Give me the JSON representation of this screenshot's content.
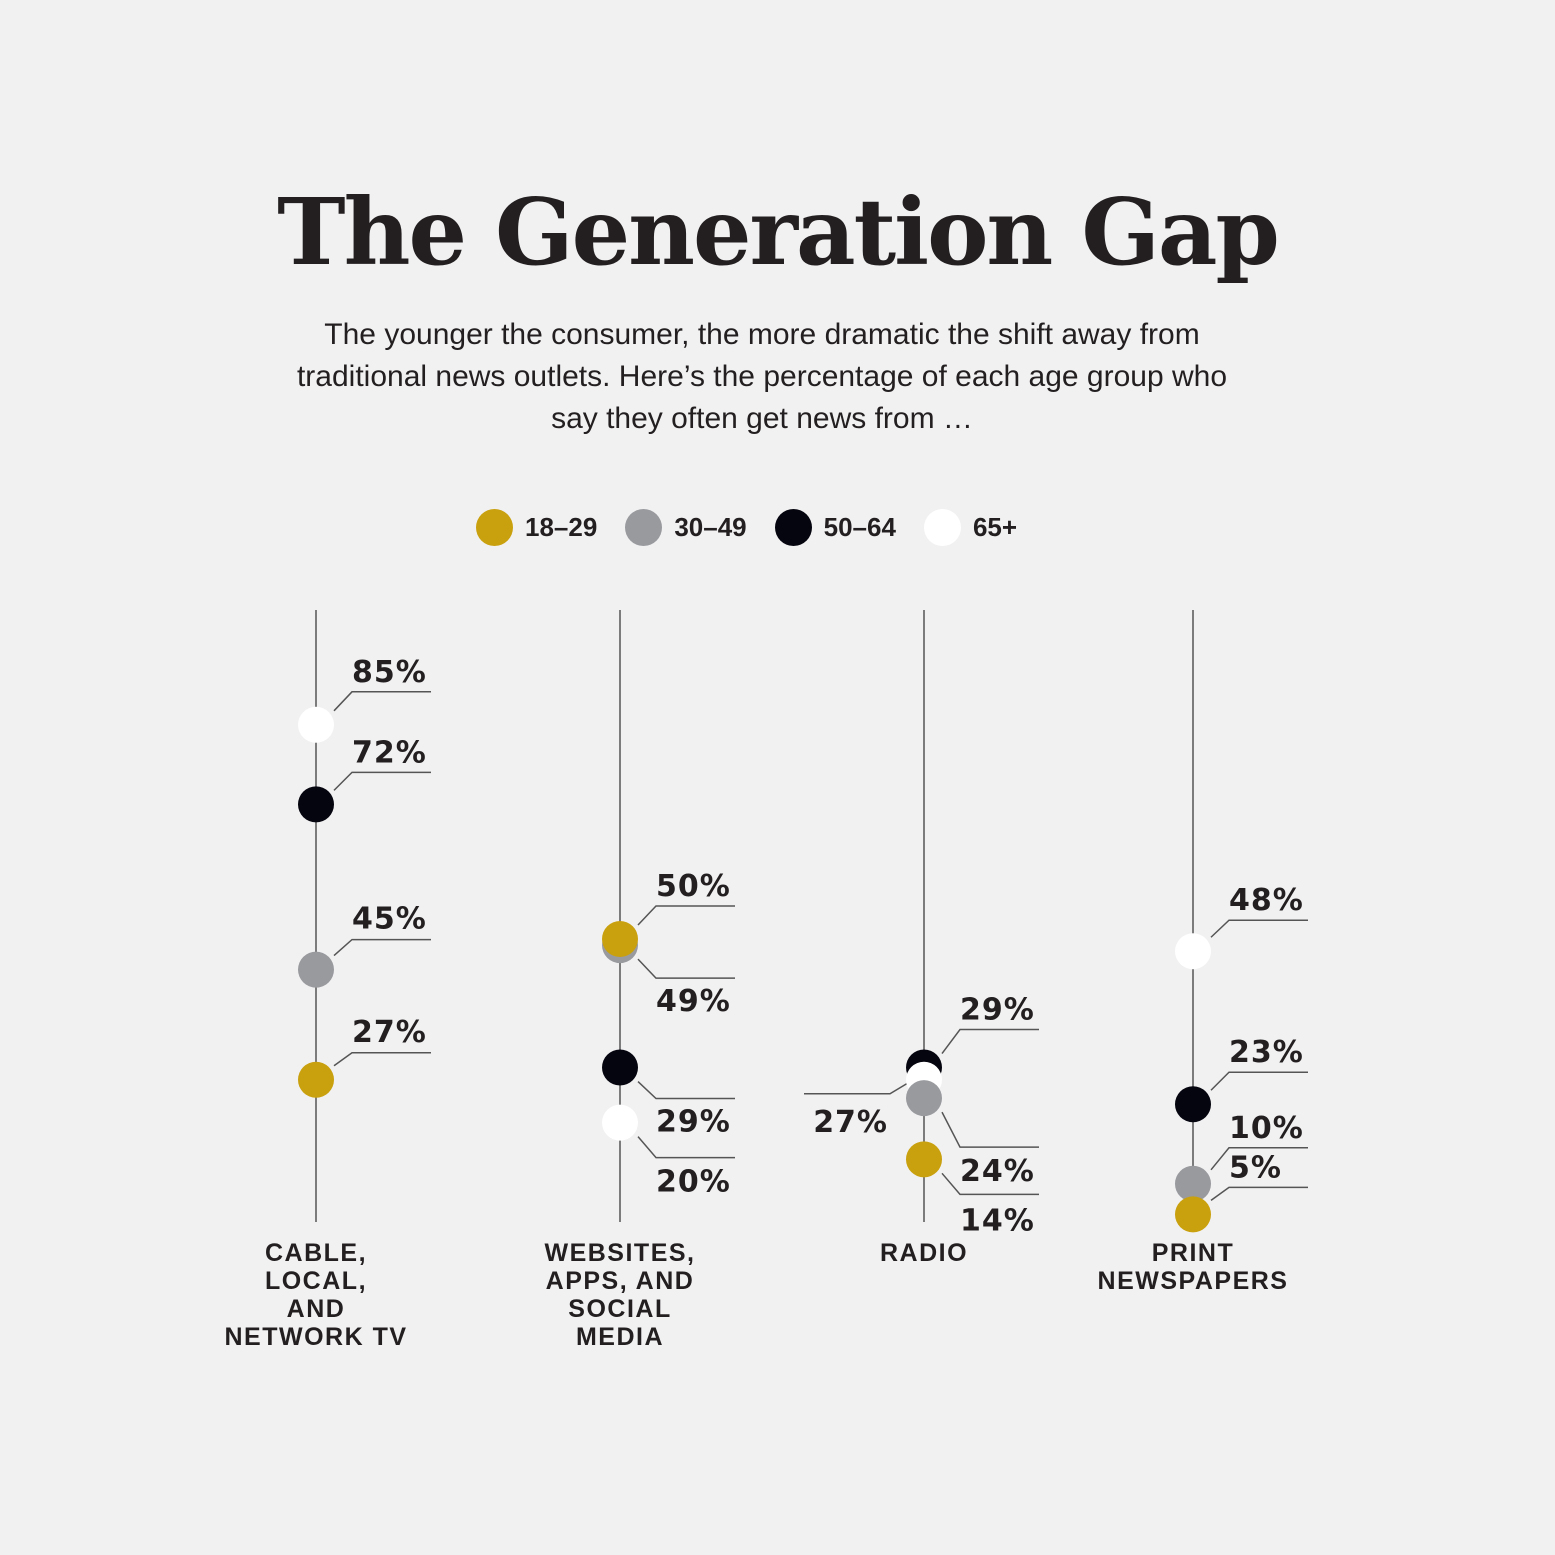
{
  "title": "The Generation Gap",
  "subtitle": "The younger the consumer, the more dramatic the shift away from traditional news outlets. Here’s the percentage of each age group who say they often get news from …",
  "colors": {
    "18-29": "#c9a00d",
    "30-49": "#999a9e",
    "50-64": "#05050f",
    "65+": "#ffffff",
    "line": "#555555",
    "text": "#231f20"
  },
  "chart_data": {
    "type": "scatter",
    "title": "The Generation Gap",
    "ylim": [
      0,
      100
    ],
    "series": [
      {
        "name": "18–29",
        "key": "18-29",
        "values": [
          27,
          50,
          14,
          5
        ]
      },
      {
        "name": "30–49",
        "key": "30-49",
        "values": [
          45,
          49,
          24,
          10
        ]
      },
      {
        "name": "50–64",
        "key": "50-64",
        "values": [
          72,
          29,
          29,
          23
        ]
      },
      {
        "name": "65+",
        "key": "65+",
        "values": [
          85,
          20,
          27,
          48
        ]
      }
    ],
    "categories": [
      {
        "name": "CABLE, LOCAL, AND NETWORK TV",
        "lines": [
          "CABLE,",
          "LOCAL,",
          "AND",
          "NETWORK TV"
        ]
      },
      {
        "name": "WEBSITES, APPS, AND SOCIAL MEDIA",
        "lines": [
          "WEBSITES,",
          "APPS, AND",
          "SOCIAL",
          "MEDIA"
        ]
      },
      {
        "name": "RADIO",
        "lines": [
          "RADIO"
        ]
      },
      {
        "name": "PRINT NEWSPAPERS",
        "lines": [
          "PRINT",
          "NEWSPAPERS"
        ]
      }
    ],
    "labels": [
      [
        "27%",
        "45%",
        "72%",
        "85%"
      ],
      [
        "50%",
        "49%",
        "29%",
        "20%"
      ],
      [
        "14%",
        "24%",
        "29%",
        "27%"
      ],
      [
        "5%",
        "10%",
        "23%",
        "48%"
      ]
    ]
  }
}
